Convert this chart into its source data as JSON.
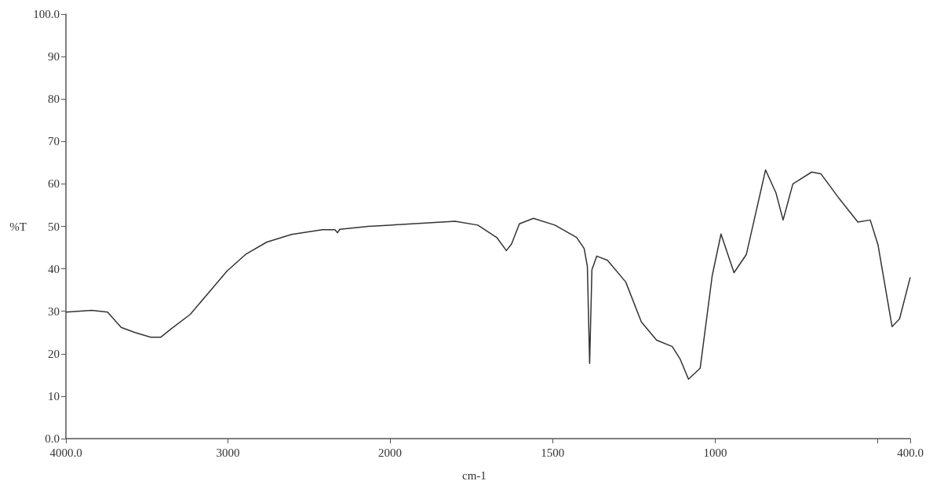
{
  "chart_data": [
    {
      "type": "line",
      "ylabel": "%T",
      "x": [
        4000,
        3840,
        3743,
        3659,
        3574,
        3477,
        3414,
        3346,
        3232,
        3119,
        3005,
        2891,
        2760,
        2607,
        2418,
        2340,
        2324,
        2310,
        2134,
        2000
      ],
      "values": [
        29.8,
        30.2,
        29.8,
        26.2,
        25,
        23.9,
        23.9,
        26,
        29.3,
        34.4,
        39.5,
        43.4,
        46.3,
        48.1,
        49.2,
        49.2,
        48.5,
        49.3,
        50,
        50.3
      ],
      "color": "#333333",
      "xlim": [
        4000,
        2000
      ],
      "ylim": [
        0,
        100
      ],
      "xticks": [
        {
          "value": 4000,
          "label": "4000.0"
        },
        3000,
        2000
      ],
      "yticks": [
        {
          "value": 0,
          "label": "0.0"
        },
        10,
        20,
        30,
        40,
        50,
        60,
        70,
        80,
        90,
        {
          "value": 100,
          "label": "100.0"
        }
      ],
      "grid": false,
      "marker": "none",
      "line_style": "solid"
    },
    {
      "type": "line",
      "xlabel": "cm-1",
      "x": [
        2000,
        1800,
        1730,
        1672,
        1642,
        1626,
        1602,
        1559,
        1493,
        1426,
        1403,
        1393,
        1386,
        1379,
        1364,
        1331,
        1275,
        1227,
        1180,
        1132,
        1108,
        1082,
        1046,
        1009,
        982,
        942,
        904,
        845,
        813,
        791,
        761,
        703,
        675,
        618,
        561,
        523,
        499,
        456,
        433,
        400
      ],
      "values": [
        50.3,
        51.2,
        50.3,
        47.4,
        44.3,
        45.9,
        50.6,
        51.9,
        50.3,
        47.4,
        44.8,
        40.6,
        17.7,
        39.8,
        43,
        42,
        36.9,
        27.5,
        23.2,
        21.7,
        18.8,
        14,
        16.6,
        38.4,
        48.2,
        39.1,
        43.4,
        63.3,
        57.9,
        51.5,
        60,
        62.8,
        62.4,
        56.5,
        51,
        51.5,
        45.6,
        26.4,
        28.2,
        38
      ],
      "color": "#333333",
      "xlim": [
        2000,
        400
      ],
      "ylim": [
        0,
        100
      ],
      "xticks": [
        1500,
        1000,
        {
          "value": 500,
          "label": null
        },
        {
          "value": 400,
          "label": "400.0"
        }
      ],
      "tick_labels": "x",
      "grid": false,
      "marker": "none",
      "line_style": "solid"
    }
  ]
}
